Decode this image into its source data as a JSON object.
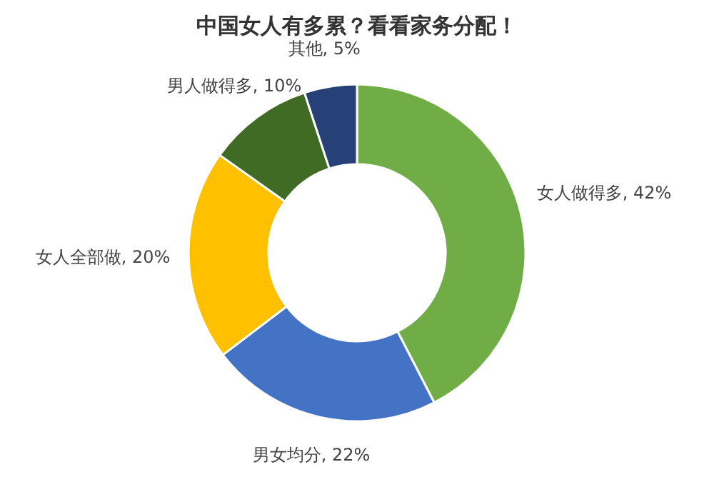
{
  "chart_data": {
    "type": "donut",
    "title": "中国女人有多累？看看家务分配！",
    "categories": [
      "女人做得多",
      "男女均分",
      "女人全部做",
      "男人做得多",
      "其他"
    ],
    "values": [
      42,
      22,
      20,
      10,
      5
    ],
    "value_labels": [
      "42%",
      "22%",
      "20%",
      "10%",
      "5%"
    ],
    "colors": [
      "#70ad47",
      "#4472c4",
      "#ffc000",
      "#3f6b24",
      "#254177"
    ]
  }
}
